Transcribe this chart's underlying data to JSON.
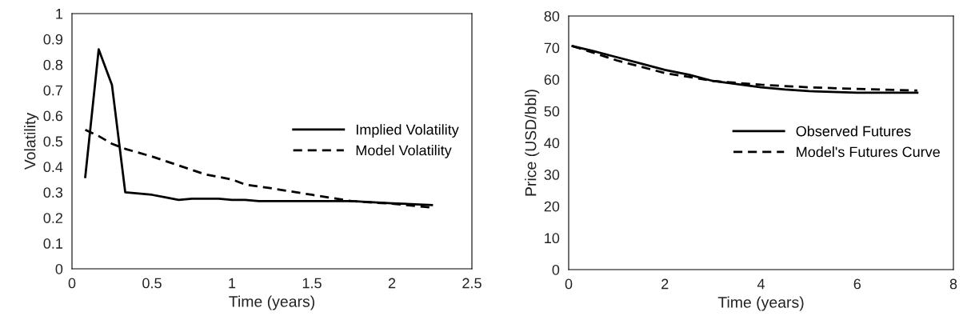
{
  "chart_data": [
    {
      "type": "line",
      "xlabel": "Time (years)",
      "ylabel": "Volatility",
      "xlim": [
        0,
        2.5
      ],
      "xticks": [
        0,
        0.5,
        1,
        1.5,
        2,
        2.5
      ],
      "ylim": [
        0,
        1
      ],
      "yticks": [
        0,
        0.1,
        0.2,
        0.3,
        0.4,
        0.5,
        0.6,
        0.7,
        0.8,
        0.9,
        1
      ],
      "grid": false,
      "legend": "right",
      "series": [
        {
          "name": "Implied Volatility",
          "color": "#000000",
          "line_style": "solid",
          "x": [
            0.083,
            0.167,
            0.25,
            0.333,
            0.5,
            0.583,
            0.667,
            0.75,
            0.917,
            1,
            1.083,
            1.167,
            1.5,
            1.75,
            2,
            2.25
          ],
          "values": [
            0.36,
            0.86,
            0.72,
            0.3,
            0.29,
            0.28,
            0.27,
            0.275,
            0.275,
            0.27,
            0.27,
            0.265,
            0.265,
            0.265,
            0.257,
            0.25
          ]
        },
        {
          "name": "Model Volatility",
          "color": "#000000",
          "line_style": "dashed",
          "x": [
            0.083,
            0.167,
            0.25,
            0.333,
            0.5,
            0.667,
            0.833,
            1,
            1.083,
            1.25,
            1.5,
            1.75,
            2,
            2.25
          ],
          "values": [
            0.545,
            0.52,
            0.49,
            0.47,
            0.44,
            0.405,
            0.37,
            0.35,
            0.33,
            0.315,
            0.29,
            0.265,
            0.255,
            0.24
          ]
        }
      ]
    },
    {
      "type": "line",
      "xlabel": "Time (years)",
      "ylabel": "Price (USD/bbl)",
      "xlim": [
        0,
        8
      ],
      "xticks": [
        0,
        2,
        4,
        6,
        8
      ],
      "ylim": [
        0,
        80
      ],
      "yticks": [
        0,
        10,
        20,
        30,
        40,
        50,
        60,
        70,
        80
      ],
      "grid": false,
      "legend": "right",
      "series": [
        {
          "name": "Observed Futures",
          "color": "#000000",
          "line_style": "solid",
          "x": [
            0.08,
            0.5,
            1,
            1.5,
            2,
            2.5,
            3,
            3.5,
            4,
            4.5,
            5,
            6,
            7.25
          ],
          "values": [
            70.5,
            69,
            67,
            65,
            63,
            61.5,
            59.5,
            58.5,
            57.5,
            56.8,
            56.3,
            55.8,
            55.8
          ]
        },
        {
          "name": "Model's Futures Curve",
          "color": "#000000",
          "line_style": "dashed",
          "x": [
            0.08,
            0.5,
            1,
            1.5,
            2,
            2.5,
            3,
            3.5,
            4,
            5,
            6,
            7.25
          ],
          "values": [
            70.5,
            68.5,
            66,
            64,
            62,
            60.8,
            59.5,
            58.9,
            58.3,
            57.5,
            57,
            56.5
          ]
        }
      ]
    }
  ]
}
